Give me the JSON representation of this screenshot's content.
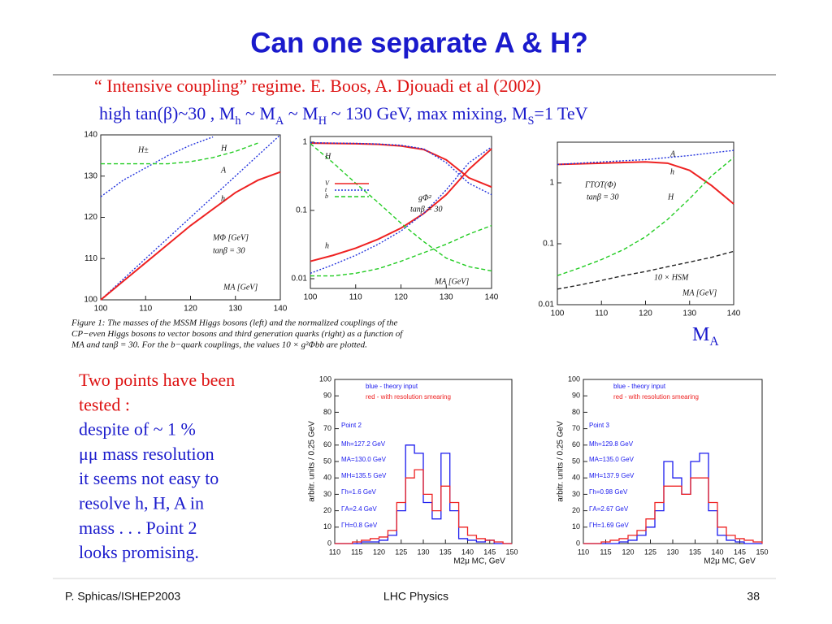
{
  "title": "Can one separate A & H?",
  "reference": "“ Intensive coupling” regime.   E. Boos, A. Djouadi et al (2002)",
  "conditions": [
    "high tan(β)~30 , M",
    "h",
    " ~ M",
    "A",
    " ~ M",
    "H",
    " ~ 130 GeV, max mixing, M",
    "S",
    "=1 TeV"
  ],
  "caption": [
    "Figure 1:  The masses of the MSSM Higgs bosons (left) and the normalized couplings of the",
    "CP−even Higgs bosons to vector bosons and third generation quarks (right) as a function of",
    "MA  and tanβ = 30.  For the b−quark couplings, the values 10 × g²Φbb are plotted."
  ],
  "axis_note": [
    "M",
    "A"
  ],
  "body": [
    "Two points have been",
    "tested :",
    "despite of ~ 1 %",
    "μμ mass resolution",
    "it seems not easy to",
    "resolve h, H, A in",
    "mass . . . Point 2",
    "looks promising."
  ],
  "footer": {
    "left": "P. Sphicas/ISHEP2003",
    "center": "LHC Physics",
    "right": "38"
  },
  "chart_data": [
    {
      "type": "line",
      "x": [
        100,
        105,
        110,
        115,
        120,
        125,
        130,
        135,
        140
      ],
      "xlim": [
        100,
        140
      ],
      "xticks": [
        100,
        110,
        120,
        130,
        140
      ],
      "ylim": [
        100,
        140
      ],
      "yticks": [
        100,
        110,
        120,
        130,
        140
      ],
      "series": [
        {
          "color": "#2233dd",
          "dash": "dotted",
          "values": [
            125,
            129,
            132,
            135,
            137.5,
            139.5,
            null,
            null,
            null
          ]
        },
        {
          "color": "#22cc22",
          "dash": "dashed",
          "values": [
            133,
            133,
            133,
            133,
            133.5,
            134.5,
            136,
            138,
            null
          ]
        },
        {
          "color": "#2233dd",
          "dash": "dotted",
          "values": [
            100,
            105,
            110,
            115,
            120,
            125,
            130,
            135,
            140
          ]
        },
        {
          "color": "#ee2222",
          "dash": "solid",
          "values": [
            100,
            104.5,
            109,
            113.5,
            118,
            122,
            126,
            129,
            131
          ]
        }
      ],
      "annotations": [
        "H±",
        "H",
        "A",
        "h",
        "MΦ [GeV]",
        "tanβ = 30",
        "MA [GeV]"
      ]
    },
    {
      "type": "line",
      "log_y": true,
      "x": [
        100,
        105,
        110,
        115,
        120,
        125,
        130,
        135,
        140
      ],
      "xlim": [
        100,
        140
      ],
      "xticks": [
        100,
        110,
        120,
        130,
        140
      ],
      "ylim": [
        0.0072,
        1.21
      ],
      "yticks": [
        1,
        0.1,
        0.01
      ],
      "series": [
        {
          "name": "V",
          "color": "#ee2222",
          "dash": "solid",
          "values": [
            0.018,
            0.022,
            0.028,
            0.038,
            0.055,
            0.09,
            0.17,
            0.4,
            0.8
          ]
        },
        {
          "color": "#ee2222",
          "dash": "solid",
          "values": [
            0.97,
            0.96,
            0.95,
            0.93,
            0.88,
            0.78,
            0.55,
            0.3,
            0.22
          ]
        },
        {
          "name": "t",
          "color": "#2233dd",
          "dash": "dotted",
          "values": [
            0.012,
            0.016,
            0.022,
            0.032,
            0.05,
            0.09,
            0.2,
            0.5,
            0.85
          ]
        },
        {
          "color": "#2233dd",
          "dash": "dotted",
          "values": [
            0.98,
            0.97,
            0.96,
            0.94,
            0.9,
            0.8,
            0.5,
            0.25,
            0.17
          ]
        },
        {
          "name": "b",
          "color": "#22cc22",
          "dash": "dashed",
          "values": [
            0.95,
            0.5,
            0.25,
            0.13,
            0.065,
            0.035,
            0.02,
            0.015,
            0.013
          ]
        },
        {
          "color": "#22cc22",
          "dash": "dashed",
          "values": [
            0.011,
            0.011,
            0.012,
            0.014,
            0.018,
            0.024,
            0.032,
            0.045,
            0.06
          ]
        }
      ],
      "annotations": [
        "H",
        "gΦ²",
        "tanβ = 30",
        "h",
        "MA [GeV]"
      ]
    },
    {
      "type": "line",
      "log_y": true,
      "x": [
        100,
        105,
        110,
        115,
        120,
        125,
        130,
        135,
        140
      ],
      "xlim": [
        100,
        140
      ],
      "xticks": [
        100,
        110,
        120,
        130,
        140
      ],
      "ylim": [
        0.01,
        4.64
      ],
      "yticks": [
        1,
        0.1,
        0.01
      ],
      "series": [
        {
          "color": "#ee2222",
          "dash": "solid",
          "values": [
            2.0,
            2.05,
            2.1,
            2.15,
            2.2,
            2.1,
            1.6,
            0.9,
            0.45
          ]
        },
        {
          "color": "#2233dd",
          "dash": "dotted",
          "values": [
            2.0,
            2.1,
            2.2,
            2.3,
            2.4,
            2.6,
            2.8,
            3.1,
            3.4
          ]
        },
        {
          "color": "#22cc22",
          "dash": "dashed",
          "values": [
            0.03,
            0.04,
            0.055,
            0.08,
            0.13,
            0.25,
            0.55,
            1.3,
            2.6
          ]
        },
        {
          "color": "#222222",
          "dash": "dashed",
          "values": [
            0.018,
            0.021,
            0.025,
            0.03,
            0.035,
            0.042,
            0.05,
            0.06,
            0.075
          ]
        }
      ],
      "annotations": [
        "A",
        "h",
        "ΓTOT(Φ)",
        "tanβ = 30",
        "H",
        "10 × HSM",
        "MA [GeV]"
      ]
    },
    {
      "type": "histogram",
      "bins": [
        110,
        112,
        114,
        116,
        118,
        120,
        122,
        124,
        126,
        128,
        130,
        132,
        134,
        136,
        138,
        140,
        142,
        144,
        146,
        148,
        150
      ],
      "xlim": [
        110,
        150
      ],
      "xticks": [
        110,
        115,
        120,
        125,
        130,
        135,
        140,
        145,
        150
      ],
      "ylim": [
        0,
        100
      ],
      "yticks": [
        0,
        10,
        20,
        30,
        40,
        50,
        60,
        70,
        80,
        90,
        100
      ],
      "ylabel": "arbitr. units / 0.25 GeV",
      "xlabel": "M2μ MC, GeV",
      "series": [
        {
          "color": "#1a1aee",
          "values": [
            0,
            0,
            0,
            1,
            1,
            2,
            5,
            20,
            60,
            55,
            25,
            15,
            55,
            20,
            3,
            2,
            1,
            2,
            0,
            0
          ]
        },
        {
          "color": "#ee2222",
          "values": [
            0,
            0,
            1,
            2,
            3,
            4,
            8,
            25,
            40,
            45,
            30,
            20,
            35,
            25,
            10,
            5,
            3,
            2,
            1,
            0
          ]
        }
      ],
      "annotations": [
        "blue - theory input",
        "red - with resolution smearing",
        "Point 2",
        "Mh=127.2 GeV",
        "MA=130.0 GeV",
        "MH=135.5 GeV",
        "Γh=1.6 GeV",
        "ΓA=2.4 GeV",
        "ΓH=0.8 GeV"
      ]
    },
    {
      "type": "histogram",
      "bins": [
        110,
        112,
        114,
        116,
        118,
        120,
        122,
        124,
        126,
        128,
        130,
        132,
        134,
        136,
        138,
        140,
        142,
        144,
        146,
        148,
        150
      ],
      "xlim": [
        110,
        150
      ],
      "xticks": [
        110,
        115,
        120,
        125,
        130,
        135,
        140,
        145,
        150
      ],
      "ylim": [
        0,
        100
      ],
      "yticks": [
        0,
        10,
        20,
        30,
        40,
        50,
        60,
        70,
        80,
        90,
        100
      ],
      "ylabel": "arbitr. units / 0.25 GeV",
      "xlabel": "M2μ MC, GeV",
      "series": [
        {
          "color": "#1a1aee",
          "values": [
            0,
            0,
            0,
            0,
            1,
            2,
            5,
            10,
            20,
            50,
            40,
            30,
            50,
            55,
            20,
            5,
            2,
            1,
            0,
            0
          ]
        },
        {
          "color": "#ee2222",
          "values": [
            0,
            0,
            1,
            2,
            3,
            5,
            8,
            15,
            25,
            35,
            35,
            30,
            40,
            40,
            25,
            10,
            5,
            3,
            2,
            1
          ]
        }
      ],
      "annotations": [
        "blue - theory input",
        "red - with resolution smearing",
        "Point 3",
        "Mh=129.8 GeV",
        "MA=135.0 GeV",
        "MH=137.9 GeV",
        "Γh=0.98 GeV",
        "ΓA=2.67 GeV",
        "ΓH=1.69 GeV"
      ]
    }
  ]
}
